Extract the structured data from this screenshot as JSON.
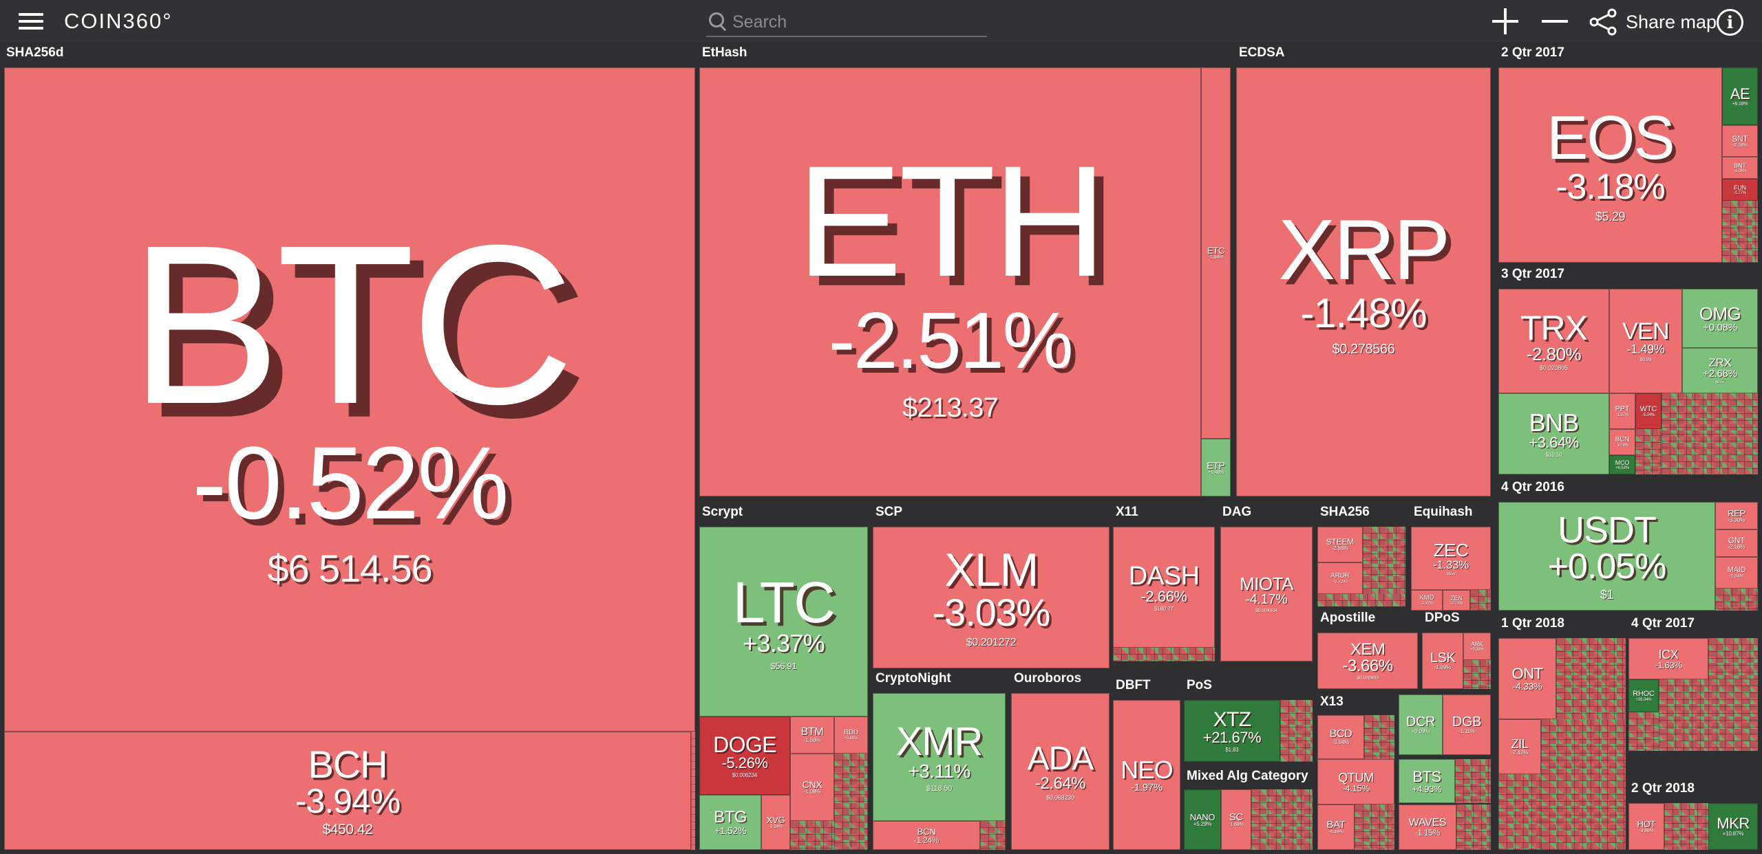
{
  "app": {
    "logo": "COIN360°"
  },
  "search": {
    "placeholder": "Search"
  },
  "toolbar": {
    "share_label": "Share map"
  },
  "colors": {
    "red": "#ec7071",
    "dark_red": "#c9363b",
    "green": "#7cc07b",
    "dark_green": "#2e7b3c",
    "background": "#2f2f31"
  },
  "groups": {
    "sha256d": "SHA256d",
    "ethash": "EtHash",
    "ecdsa": "ECDSA",
    "q2_2017": "2 Qtr 2017",
    "q3_2017": "3 Qtr 2017",
    "q4_2016": "4 Qtr 2016",
    "scrypt": "Scrypt",
    "scp": "SCP",
    "x11": "X11",
    "dag": "DAG",
    "sha256": "SHA256",
    "equihash": "Equihash",
    "cryptonight": "CryptoNight",
    "ouroboros": "Ouroboros",
    "dbft": "DBFT",
    "pos": "PoS",
    "apostille": "Apostille",
    "dpos": "DPoS",
    "x13": "X13",
    "mixed": "Mixed Alg Category",
    "q1_2018": "1 Qtr 2018",
    "q4_2017": "4 Qtr 2017",
    "q2_2018": "2 Qtr 2018"
  },
  "coins": {
    "btc": {
      "symbol": "BTC",
      "change": "-0.52%",
      "price": "$6 514.56"
    },
    "bch": {
      "symbol": "BCH",
      "change": "-3.94%",
      "price": "$450.42"
    },
    "eth": {
      "symbol": "ETH",
      "change": "-2.51%",
      "price": "$213.37"
    },
    "etc": {
      "symbol": "ETC",
      "change": "-1.84%"
    },
    "etp": {
      "symbol": "ETP",
      "change": "+1.48%"
    },
    "xrp": {
      "symbol": "XRP",
      "change": "-1.48%",
      "price": "$0.278566"
    },
    "eos": {
      "symbol": "EOS",
      "change": "-3.18%",
      "price": "$5.29"
    },
    "ae": {
      "symbol": "AE",
      "change": "+6.18%"
    },
    "snt": {
      "symbol": "SNT",
      "change": "-2.18%"
    },
    "bnt": {
      "symbol": "BNT",
      "change": "-1.08%"
    },
    "fun": {
      "symbol": "FUN",
      "change": "-1.77%"
    },
    "trx": {
      "symbol": "TRX",
      "change": "-2.80%",
      "price": "$0.020805"
    },
    "ven": {
      "symbol": "VEN",
      "change": "-1.49%",
      "price": "$0.93"
    },
    "omg": {
      "symbol": "OMG",
      "change": "+0.08%"
    },
    "zrx": {
      "symbol": "ZRX",
      "change": "+2.68%",
      "price": "$0.57"
    },
    "bnb": {
      "symbol": "BNB",
      "change": "+3.64%",
      "price": "$10.10"
    },
    "ppt": {
      "symbol": "PPT",
      "change": "-1.87%"
    },
    "wtc": {
      "symbol": "WTC",
      "change": "-5.34%"
    },
    "qtum_q3": {
      "symbol": "BCN",
      "change": "-1.78%"
    },
    "mco": {
      "symbol": "MCO",
      "change": "+6.53%"
    },
    "usdt": {
      "symbol": "USDT",
      "change": "+0.05%",
      "price": "$1"
    },
    "rep": {
      "symbol": "REP",
      "change": "-3.30%"
    },
    "gnt": {
      "symbol": "GNT",
      "change": "-2.16%"
    },
    "maid": {
      "symbol": "MAID",
      "change": "-1.84%"
    },
    "ltc": {
      "symbol": "LTC",
      "change": "+3.37%",
      "price": "$56.91"
    },
    "doge": {
      "symbol": "DOGE",
      "change": "-5.26%",
      "price": "$0.006234"
    },
    "btm": {
      "symbol": "BTM",
      "change": "-1.60%"
    },
    "rdd": {
      "symbol": "RDD",
      "change": "+3.80%"
    },
    "cnx": {
      "symbol": "CNX",
      "change": "-1.08%"
    },
    "btg": {
      "symbol": "BTG",
      "change": "+1.52%"
    },
    "xvg": {
      "symbol": "XVG",
      "change": "-3.14%"
    },
    "xlm": {
      "symbol": "XLM",
      "change": "-3.03%",
      "price": "$0.201272"
    },
    "xmr": {
      "symbol": "XMR",
      "change": "+3.11%",
      "price": "$118.50"
    },
    "bcn": {
      "symbol": "BCN",
      "change": "-1.24%"
    },
    "dash": {
      "symbol": "DASH",
      "change": "-2.66%",
      "price": "$180.77"
    },
    "miota": {
      "symbol": "MIOTA",
      "change": "-4.17%",
      "price": "$0.504604"
    },
    "ada": {
      "symbol": "ADA",
      "change": "-2.64%",
      "price": "$0.068230"
    },
    "neo": {
      "symbol": "NEO",
      "change": "-1.97%"
    },
    "xtz": {
      "symbol": "XTZ",
      "change": "+21.67%",
      "price": "$1.83"
    },
    "steem": {
      "symbol": "STEEM",
      "change": "-2.55%"
    },
    "ardr": {
      "symbol": "ARDR",
      "change": "-0.72%"
    },
    "zec": {
      "symbol": "ZEC",
      "change": "-1.33%",
      "price": "$159"
    },
    "kmd": {
      "symbol": "KMD",
      "change": "-2.17%"
    },
    "zen": {
      "symbol": "ZEN",
      "change": "-2.71%"
    },
    "xem": {
      "symbol": "XEM",
      "change": "-3.66%",
      "price": "$0.099803"
    },
    "lsk": {
      "symbol": "LSK",
      "change": "-1.69%"
    },
    "ark": {
      "symbol": "ARK",
      "change": "+0.38%"
    },
    "bcd": {
      "symbol": "BCD",
      "change": "-3.54%"
    },
    "qtum": {
      "symbol": "QTUM",
      "change": "-4.15%"
    },
    "dcr": {
      "symbol": "DCR",
      "change": "+0.09%"
    },
    "dgb": {
      "symbol": "DGB",
      "change": "-1.11%"
    },
    "bts": {
      "symbol": "BTS",
      "change": "+4.93%"
    },
    "waves": {
      "symbol": "WAVES",
      "change": "-1.15%"
    },
    "bat": {
      "symbol": "BAT",
      "change": "-4.49%"
    },
    "nano": {
      "symbol": "NANO",
      "change": "+5.29%"
    },
    "sc": {
      "symbol": "SC",
      "change": "-1.68%"
    },
    "ont": {
      "symbol": "ONT",
      "change": "-4.33%"
    },
    "zil": {
      "symbol": "ZIL",
      "change": "-2.42%"
    },
    "icx": {
      "symbol": "ICX",
      "change": "-1.63%"
    },
    "rhoc": {
      "symbol": "RHOC",
      "change": "+26.34%"
    },
    "mkr": {
      "symbol": "MKR",
      "change": "+10.87%"
    },
    "hot": {
      "symbol": "HOT",
      "change": "-3.88%"
    }
  }
}
